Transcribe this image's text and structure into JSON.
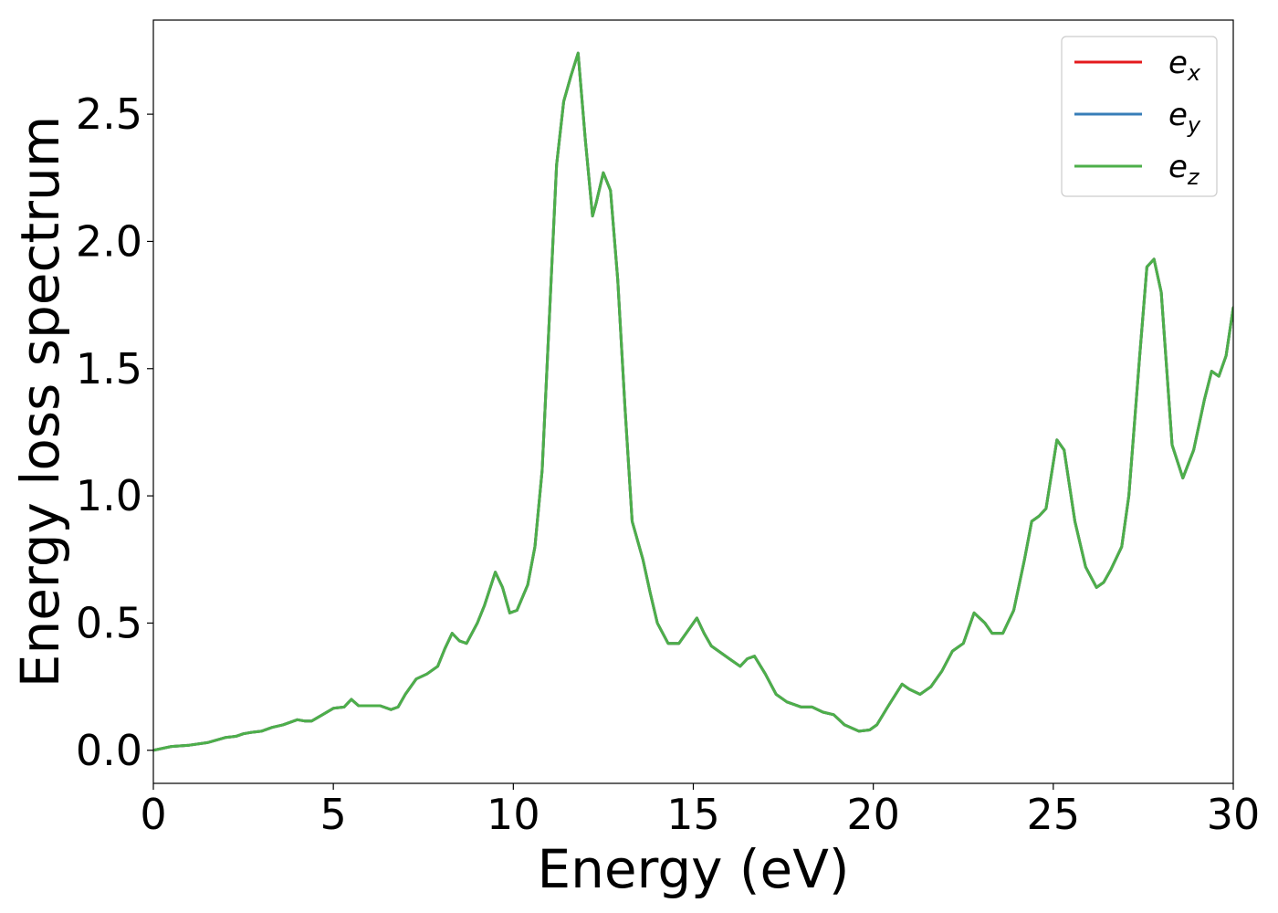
{
  "chart_data": {
    "type": "line",
    "xlabel": "Energy (eV)",
    "ylabel": "Energy loss spectrum",
    "xlim": [
      0,
      30
    ],
    "ylim": [
      -0.13,
      2.87
    ],
    "xticks": [
      0,
      5,
      10,
      15,
      20,
      25,
      30
    ],
    "xtick_labels": [
      "0",
      "5",
      "10",
      "15",
      "20",
      "25",
      "30"
    ],
    "yticks": [
      0.0,
      0.5,
      1.0,
      1.5,
      2.0,
      2.5
    ],
    "ytick_labels": [
      "0.0",
      "0.5",
      "1.0",
      "1.5",
      "2.0",
      "2.5"
    ],
    "grid": false,
    "legend_position": "top-right",
    "x": [
      0.0,
      0.5,
      1.0,
      1.5,
      2.0,
      2.3,
      2.5,
      2.7,
      3.0,
      3.3,
      3.6,
      4.0,
      4.2,
      4.4,
      4.7,
      5.0,
      5.3,
      5.5,
      5.7,
      6.0,
      6.3,
      6.6,
      6.8,
      7.0,
      7.3,
      7.6,
      7.9,
      8.1,
      8.3,
      8.5,
      8.7,
      9.0,
      9.2,
      9.5,
      9.7,
      9.9,
      10.1,
      10.4,
      10.6,
      10.8,
      11.0,
      11.2,
      11.4,
      11.6,
      11.8,
      12.0,
      12.2,
      12.3,
      12.5,
      12.7,
      12.9,
      13.1,
      13.3,
      13.6,
      13.8,
      14.0,
      14.3,
      14.6,
      14.9,
      15.1,
      15.3,
      15.5,
      15.8,
      16.0,
      16.3,
      16.5,
      16.7,
      17.0,
      17.3,
      17.6,
      18.0,
      18.3,
      18.6,
      18.9,
      19.2,
      19.6,
      19.9,
      20.1,
      20.4,
      20.8,
      21.0,
      21.3,
      21.6,
      21.9,
      22.2,
      22.5,
      22.8,
      23.1,
      23.3,
      23.6,
      23.9,
      24.2,
      24.4,
      24.6,
      24.8,
      25.1,
      25.3,
      25.6,
      25.9,
      26.2,
      26.4,
      26.6,
      26.9,
      27.1,
      27.4,
      27.6,
      27.8,
      28.0,
      28.3,
      28.6,
      28.9,
      29.2,
      29.4,
      29.6,
      29.8,
      30.0
    ],
    "series": [
      {
        "name": "e_x",
        "color": "#e41a1c",
        "values": [
          0.0,
          0.015,
          0.02,
          0.03,
          0.05,
          0.055,
          0.065,
          0.07,
          0.075,
          0.09,
          0.1,
          0.12,
          0.115,
          0.115,
          0.14,
          0.165,
          0.17,
          0.2,
          0.175,
          0.175,
          0.175,
          0.16,
          0.17,
          0.22,
          0.28,
          0.3,
          0.33,
          0.4,
          0.46,
          0.43,
          0.42,
          0.5,
          0.57,
          0.7,
          0.64,
          0.54,
          0.55,
          0.65,
          0.8,
          1.1,
          1.7,
          2.3,
          2.55,
          2.65,
          2.74,
          2.4,
          2.1,
          2.15,
          2.27,
          2.2,
          1.85,
          1.35,
          0.9,
          0.75,
          0.62,
          0.5,
          0.42,
          0.42,
          0.48,
          0.52,
          0.46,
          0.41,
          0.38,
          0.36,
          0.33,
          0.36,
          0.37,
          0.3,
          0.22,
          0.19,
          0.17,
          0.17,
          0.15,
          0.14,
          0.1,
          0.075,
          0.08,
          0.1,
          0.17,
          0.26,
          0.24,
          0.22,
          0.25,
          0.31,
          0.39,
          0.42,
          0.54,
          0.5,
          0.46,
          0.46,
          0.55,
          0.75,
          0.9,
          0.92,
          0.95,
          1.22,
          1.18,
          0.9,
          0.72,
          0.64,
          0.66,
          0.71,
          0.8,
          1.0,
          1.55,
          1.9,
          1.93,
          1.8,
          1.2,
          1.07,
          1.18,
          1.38,
          1.49,
          1.47,
          1.55,
          1.74
        ]
      },
      {
        "name": "e_y",
        "color": "#377eb8",
        "values": [
          0.0,
          0.015,
          0.02,
          0.03,
          0.05,
          0.055,
          0.065,
          0.07,
          0.075,
          0.09,
          0.1,
          0.12,
          0.115,
          0.115,
          0.14,
          0.165,
          0.17,
          0.2,
          0.175,
          0.175,
          0.175,
          0.16,
          0.17,
          0.22,
          0.28,
          0.3,
          0.33,
          0.4,
          0.46,
          0.43,
          0.42,
          0.5,
          0.57,
          0.7,
          0.64,
          0.54,
          0.55,
          0.65,
          0.8,
          1.1,
          1.7,
          2.3,
          2.55,
          2.65,
          2.74,
          2.4,
          2.1,
          2.15,
          2.27,
          2.2,
          1.85,
          1.35,
          0.9,
          0.75,
          0.62,
          0.5,
          0.42,
          0.42,
          0.48,
          0.52,
          0.46,
          0.41,
          0.38,
          0.36,
          0.33,
          0.36,
          0.37,
          0.3,
          0.22,
          0.19,
          0.17,
          0.17,
          0.15,
          0.14,
          0.1,
          0.075,
          0.08,
          0.1,
          0.17,
          0.26,
          0.24,
          0.22,
          0.25,
          0.31,
          0.39,
          0.42,
          0.54,
          0.5,
          0.46,
          0.46,
          0.55,
          0.75,
          0.9,
          0.92,
          0.95,
          1.22,
          1.18,
          0.9,
          0.72,
          0.64,
          0.66,
          0.71,
          0.8,
          1.0,
          1.55,
          1.9,
          1.93,
          1.8,
          1.2,
          1.07,
          1.18,
          1.38,
          1.49,
          1.47,
          1.55,
          1.74
        ]
      },
      {
        "name": "e_z",
        "color": "#4daf4a",
        "values": [
          0.0,
          0.015,
          0.02,
          0.03,
          0.05,
          0.055,
          0.065,
          0.07,
          0.075,
          0.09,
          0.1,
          0.12,
          0.115,
          0.115,
          0.14,
          0.165,
          0.17,
          0.2,
          0.175,
          0.175,
          0.175,
          0.16,
          0.17,
          0.22,
          0.28,
          0.3,
          0.33,
          0.4,
          0.46,
          0.43,
          0.42,
          0.5,
          0.57,
          0.7,
          0.64,
          0.54,
          0.55,
          0.65,
          0.8,
          1.1,
          1.7,
          2.3,
          2.55,
          2.65,
          2.74,
          2.4,
          2.1,
          2.15,
          2.27,
          2.2,
          1.85,
          1.35,
          0.9,
          0.75,
          0.62,
          0.5,
          0.42,
          0.42,
          0.48,
          0.52,
          0.46,
          0.41,
          0.38,
          0.36,
          0.33,
          0.36,
          0.37,
          0.3,
          0.22,
          0.19,
          0.17,
          0.17,
          0.15,
          0.14,
          0.1,
          0.075,
          0.08,
          0.1,
          0.17,
          0.26,
          0.24,
          0.22,
          0.25,
          0.31,
          0.39,
          0.42,
          0.54,
          0.5,
          0.46,
          0.46,
          0.55,
          0.75,
          0.9,
          0.92,
          0.95,
          1.22,
          1.18,
          0.9,
          0.72,
          0.64,
          0.66,
          0.71,
          0.8,
          1.0,
          1.55,
          1.9,
          1.93,
          1.8,
          1.2,
          1.07,
          1.18,
          1.38,
          1.49,
          1.47,
          1.55,
          1.74
        ]
      }
    ],
    "legend": [
      {
        "base": "e",
        "sub": "x",
        "color": "#e41a1c"
      },
      {
        "base": "e",
        "sub": "y",
        "color": "#377eb8"
      },
      {
        "base": "e",
        "sub": "z",
        "color": "#4daf4a"
      }
    ]
  }
}
